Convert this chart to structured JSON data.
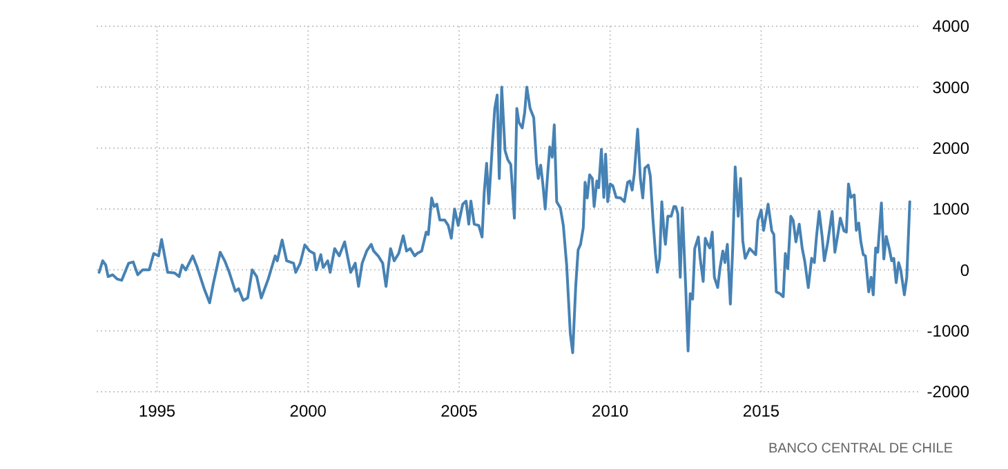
{
  "chart_data": {
    "type": "line",
    "xlim": [
      1993.0,
      2020.2
    ],
    "ylim": [
      -2000,
      4000
    ],
    "xticks": [
      1995,
      2000,
      2005,
      2010,
      2015
    ],
    "yticks": [
      -2000,
      -1000,
      0,
      1000,
      2000,
      3000,
      4000
    ],
    "grid": true,
    "line_style": "solid",
    "marker": "none",
    "annotations": [
      "BANCO CENTRAL DE CHILE"
    ],
    "series": [
      {
        "color": "#4682b4",
        "x": [
          1993.08,
          1993.2,
          1993.3,
          1993.38,
          1993.53,
          1993.68,
          1993.83,
          1994.06,
          1994.21,
          1994.36,
          1994.52,
          1994.74,
          1994.89,
          1995.05,
          1995.15,
          1995.35,
          1995.58,
          1995.73,
          1995.83,
          1995.95,
          1996.18,
          1996.33,
          1996.56,
          1996.74,
          1996.86,
          1997.09,
          1997.24,
          1997.39,
          1997.59,
          1997.7,
          1997.85,
          1998.0,
          1998.15,
          1998.3,
          1998.45,
          1998.68,
          1998.91,
          1998.98,
          1999.14,
          1999.29,
          1999.52,
          1999.59,
          1999.74,
          1999.89,
          2000.05,
          2000.2,
          2000.27,
          2000.42,
          2000.5,
          2000.65,
          2000.73,
          2000.88,
          2001.03,
          2001.21,
          2001.41,
          2001.56,
          2001.67,
          2001.79,
          2001.94,
          2002.09,
          2002.17,
          2002.32,
          2002.47,
          2002.58,
          2002.73,
          2002.85,
          2003.0,
          2003.15,
          2003.26,
          2003.38,
          2003.53,
          2003.61,
          2003.76,
          2003.91,
          2003.98,
          2004.09,
          2004.17,
          2004.26,
          2004.36,
          2004.52,
          2004.64,
          2004.74,
          2004.85,
          2004.97,
          2005.12,
          2005.23,
          2005.32,
          2005.39,
          2005.5,
          2005.65,
          2005.76,
          2005.83,
          2005.91,
          2005.98,
          2006.11,
          2006.18,
          2006.26,
          2006.33,
          2006.41,
          2006.52,
          2006.61,
          2006.71,
          2006.83,
          2006.91,
          2006.98,
          2007.09,
          2007.17,
          2007.24,
          2007.35,
          2007.47,
          2007.56,
          2007.62,
          2007.7,
          2007.77,
          2007.85,
          2007.92,
          2008.0,
          2008.08,
          2008.15,
          2008.23,
          2008.35,
          2008.45,
          2008.56,
          2008.68,
          2008.76,
          2008.86,
          2008.94,
          2009.02,
          2009.11,
          2009.17,
          2009.24,
          2009.32,
          2009.41,
          2009.47,
          2009.56,
          2009.62,
          2009.71,
          2009.79,
          2009.85,
          2009.92,
          2010.0,
          2010.09,
          2010.2,
          2010.35,
          2010.47,
          2010.58,
          2010.65,
          2010.73,
          2010.8,
          2010.91,
          2011.0,
          2011.08,
          2011.15,
          2011.26,
          2011.33,
          2011.41,
          2011.5,
          2011.56,
          2011.64,
          2011.71,
          2011.79,
          2011.83,
          2011.91,
          2012.02,
          2012.11,
          2012.17,
          2012.24,
          2012.32,
          2012.39,
          2012.5,
          2012.58,
          2012.65,
          2012.73,
          2012.8,
          2012.92,
          2012.98,
          2013.08,
          2013.15,
          2013.23,
          2013.3,
          2013.38,
          2013.45,
          2013.56,
          2013.64,
          2013.73,
          2013.8,
          2013.88,
          2013.98,
          2014.06,
          2014.14,
          2014.24,
          2014.32,
          2014.39,
          2014.47,
          2014.62,
          2014.74,
          2014.82,
          2014.89,
          2015.0,
          2015.08,
          2015.23,
          2015.35,
          2015.42,
          2015.5,
          2015.62,
          2015.73,
          2015.8,
          2015.88,
          2015.98,
          2016.06,
          2016.15,
          2016.26,
          2016.36,
          2016.44,
          2016.56,
          2016.67,
          2016.76,
          2016.83,
          2016.92,
          2017.02,
          2017.09,
          2017.2,
          2017.35,
          2017.44,
          2017.55,
          2017.62,
          2017.74,
          2017.82,
          2017.89,
          2017.97,
          2018.08,
          2018.15,
          2018.23,
          2018.3,
          2018.38,
          2018.45,
          2018.56,
          2018.64,
          2018.71,
          2018.79,
          2018.86,
          2018.98,
          2019.06,
          2019.14,
          2019.24,
          2019.32,
          2019.39,
          2019.47,
          2019.55,
          2019.62,
          2019.74,
          2019.82,
          2019.92
        ],
        "values": [
          -40,
          150,
          80,
          -110,
          -80,
          -150,
          -170,
          110,
          130,
          -80,
          0,
          0,
          270,
          230,
          500,
          -40,
          -50,
          -110,
          80,
          0,
          230,
          40,
          -310,
          -540,
          -230,
          290,
          150,
          -40,
          -350,
          -310,
          -500,
          -460,
          0,
          -110,
          -460,
          -150,
          230,
          150,
          490,
          150,
          110,
          -40,
          110,
          410,
          310,
          270,
          0,
          250,
          40,
          150,
          -40,
          350,
          230,
          460,
          -40,
          110,
          -270,
          110,
          310,
          420,
          310,
          230,
          110,
          -270,
          350,
          150,
          270,
          560,
          310,
          350,
          230,
          270,
          310,
          620,
          580,
          1180,
          1040,
          1080,
          820,
          820,
          730,
          520,
          1000,
          730,
          1080,
          1130,
          750,
          1130,
          750,
          730,
          540,
          1270,
          1750,
          1090,
          2120,
          2650,
          2870,
          1500,
          3000,
          1960,
          1810,
          1730,
          850,
          2650,
          2420,
          2330,
          2580,
          3000,
          2650,
          2500,
          1770,
          1500,
          1720,
          1420,
          1000,
          1500,
          2020,
          1850,
          2380,
          1120,
          1020,
          730,
          80,
          -1040,
          -1360,
          -270,
          330,
          420,
          690,
          1440,
          1180,
          1560,
          1500,
          1040,
          1460,
          1350,
          1980,
          1190,
          1900,
          1120,
          1410,
          1380,
          1190,
          1180,
          1120,
          1440,
          1460,
          1310,
          1580,
          2310,
          1500,
          1180,
          1670,
          1720,
          1540,
          880,
          270,
          -40,
          190,
          1120,
          580,
          420,
          880,
          880,
          1040,
          1040,
          920,
          -120,
          1020,
          -270,
          -1330,
          -390,
          -480,
          350,
          540,
          190,
          -190,
          520,
          420,
          360,
          620,
          -120,
          -290,
          40,
          310,
          120,
          420,
          -560,
          390,
          1690,
          880,
          1500,
          480,
          190,
          350,
          290,
          250,
          810,
          980,
          650,
          1080,
          640,
          580,
          -360,
          -390,
          -440,
          270,
          20,
          880,
          810,
          460,
          750,
          350,
          150,
          -290,
          190,
          120,
          540,
          960,
          540,
          150,
          440,
          960,
          290,
          620,
          850,
          640,
          620,
          1410,
          1190,
          1230,
          650,
          770,
          460,
          250,
          230,
          -360,
          -120,
          -410,
          360,
          290,
          1100,
          180,
          550,
          350,
          150,
          190,
          -210,
          120,
          0,
          -410,
          -120,
          1120
        ]
      }
    ]
  }
}
